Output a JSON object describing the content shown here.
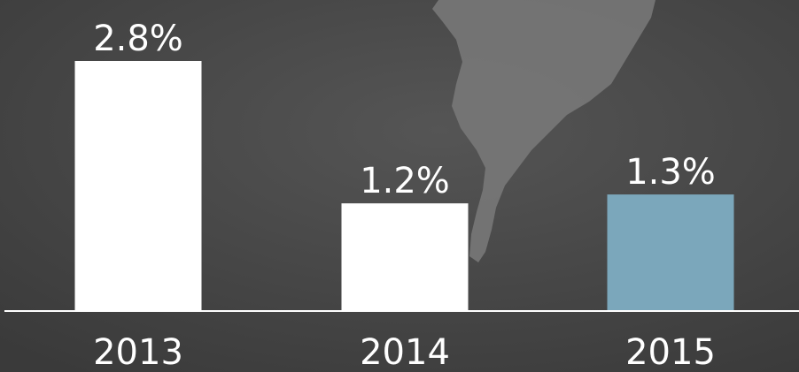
{
  "chart_data": {
    "type": "bar",
    "categories": [
      "2013",
      "2014",
      "2015"
    ],
    "values": [
      2.8,
      1.2,
      1.3
    ],
    "value_labels": [
      "2.8%",
      "1.2%",
      "1.3%"
    ],
    "colors": [
      "#ffffff",
      "#ffffff",
      "#7ba7bb"
    ]
  }
}
